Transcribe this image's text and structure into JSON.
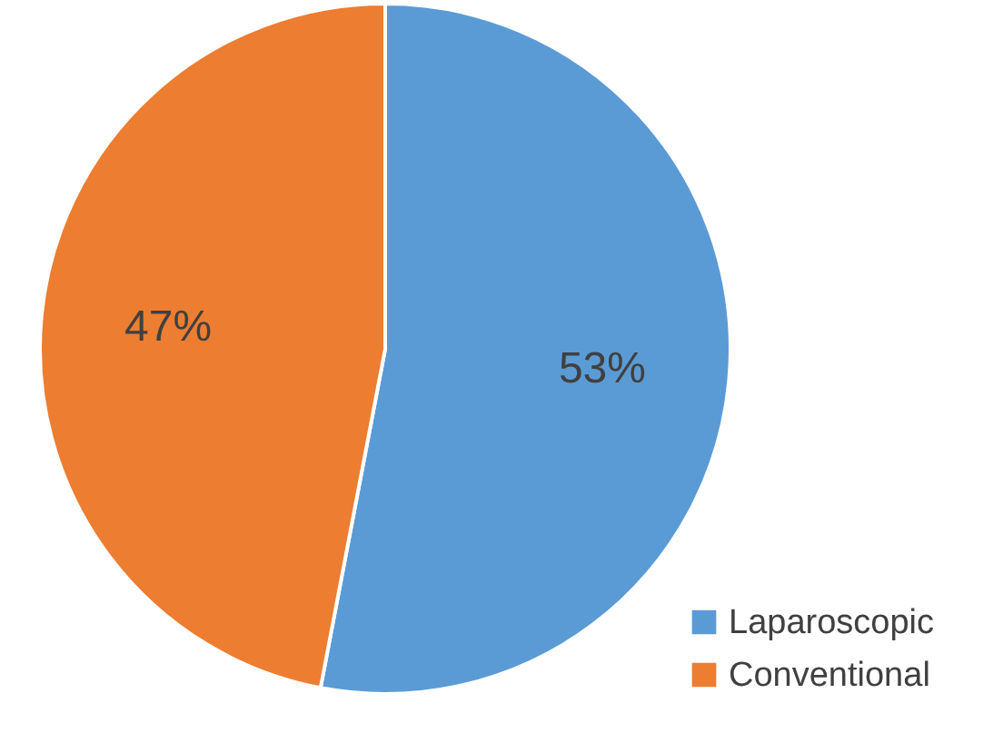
{
  "chart_data": {
    "type": "pie",
    "categories": [
      "Laparoscopic",
      "Conventional"
    ],
    "values": [
      53,
      47
    ],
    "colors": [
      "#5b9bd5",
      "#ed7d31"
    ],
    "value_labels": [
      "53%",
      "47%"
    ],
    "legend": "bottom right"
  }
}
